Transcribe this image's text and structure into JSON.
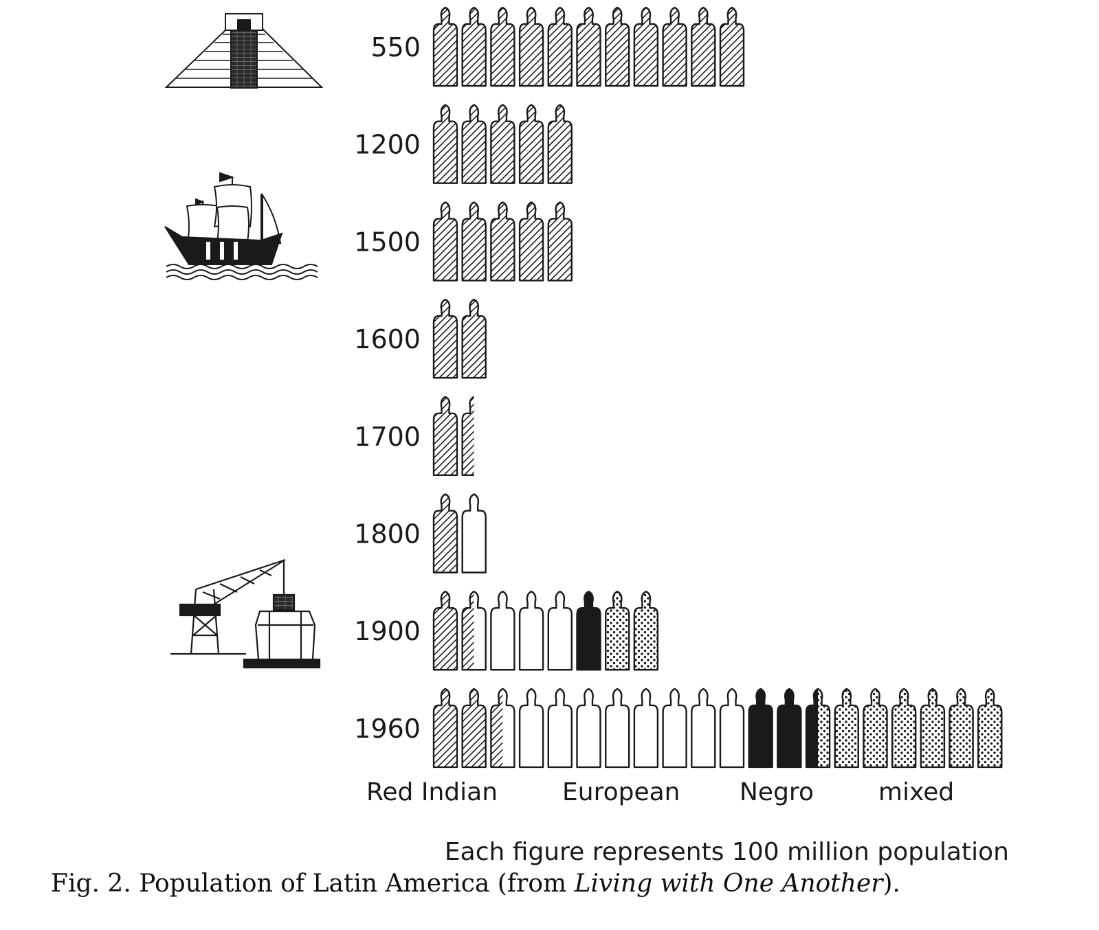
{
  "chart_data": {
    "type": "pictograph",
    "unit_note": "Each figure represents 100 million population",
    "legend": [
      {
        "key": "red_indian",
        "label": "Red Indian",
        "fill": "hatch"
      },
      {
        "key": "european",
        "label": "European",
        "fill": "outline"
      },
      {
        "key": "negro",
        "label": "Negro",
        "fill": "solid"
      },
      {
        "key": "mixed",
        "label": "mixed",
        "fill": "dotted"
      }
    ],
    "categories": [
      "550",
      "1200",
      "1500",
      "1600",
      "1700",
      "1800",
      "1900",
      "1960"
    ],
    "series": [
      {
        "name": "Red Indian",
        "values": [
          11,
          5,
          5,
          2,
          1.5,
          1,
          1.5,
          2.5
        ]
      },
      {
        "name": "European",
        "values": [
          0,
          0,
          0,
          0,
          0,
          1,
          3.5,
          8.5
        ]
      },
      {
        "name": "Negro",
        "values": [
          0,
          0,
          0,
          0,
          0,
          0,
          1,
          2.5
        ]
      },
      {
        "name": "mixed",
        "values": [
          0,
          0,
          0,
          0,
          0,
          0,
          2,
          6.5
        ]
      }
    ],
    "colors": {
      "ink": "#1a1a1a",
      "paper": "#ffffff"
    }
  },
  "caption": {
    "prefix": "Fig. 2. Population of Latin America (from ",
    "source_title": "Living with One Another",
    "suffix": ")."
  },
  "illustrations": [
    "pyramid-icon",
    "sailing-ship-icon",
    "harbor-crane-icon"
  ]
}
